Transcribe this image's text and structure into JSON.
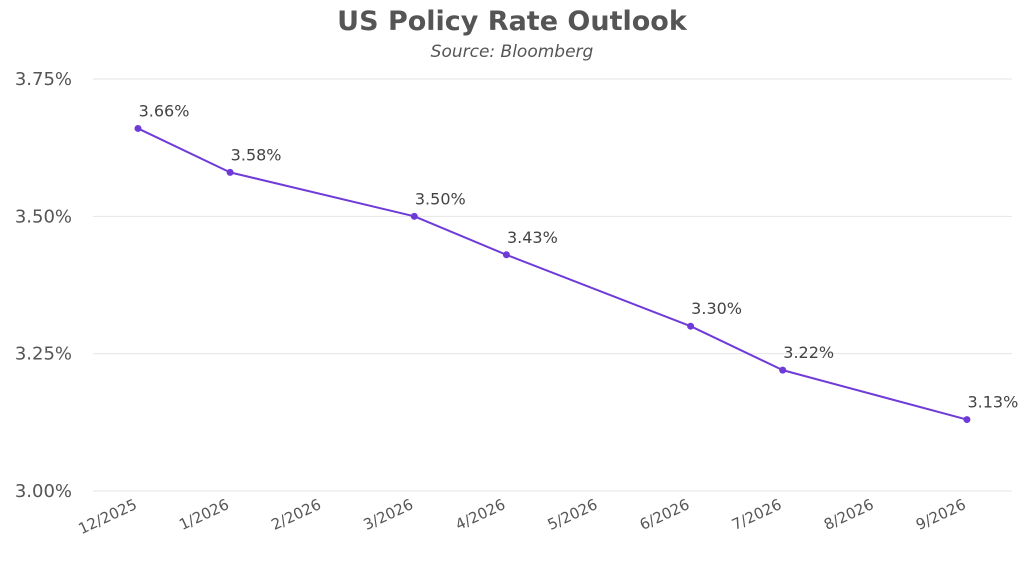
{
  "chart_data": {
    "type": "line",
    "title": "US Policy Rate Outlook",
    "subtitle": "Source: Bloomberg",
    "xlabel": "",
    "ylabel": "",
    "categories": [
      "12/2025",
      "1/2026",
      "2/2026",
      "3/2026",
      "4/2026",
      "5/2026",
      "6/2026",
      "7/2026",
      "8/2026",
      "9/2026"
    ],
    "series": [
      {
        "name": "US Policy Rate",
        "color": "#6f3bd8",
        "points": [
          {
            "x": "12/2025",
            "y": 3.66,
            "label": "3.66%"
          },
          {
            "x": "1/2026",
            "y": 3.58,
            "label": "3.58%"
          },
          {
            "x": "3/2026",
            "y": 3.5,
            "label": "3.50%"
          },
          {
            "x": "4/2026",
            "y": 3.43,
            "label": "3.43%"
          },
          {
            "x": "6/2026",
            "y": 3.3,
            "label": "3.30%"
          },
          {
            "x": "7/2026",
            "y": 3.22,
            "label": "3.22%"
          },
          {
            "x": "9/2026",
            "y": 3.13,
            "label": "3.13%"
          }
        ]
      }
    ],
    "ylim": [
      3.0,
      3.75
    ],
    "yticks": [
      {
        "value": 3.75,
        "label": "3.75%"
      },
      {
        "value": 3.5,
        "label": "3.50%"
      },
      {
        "value": 3.25,
        "label": "3.25%"
      },
      {
        "value": 3.0,
        "label": "3.00%"
      }
    ],
    "grid": true,
    "legend": "none"
  }
}
